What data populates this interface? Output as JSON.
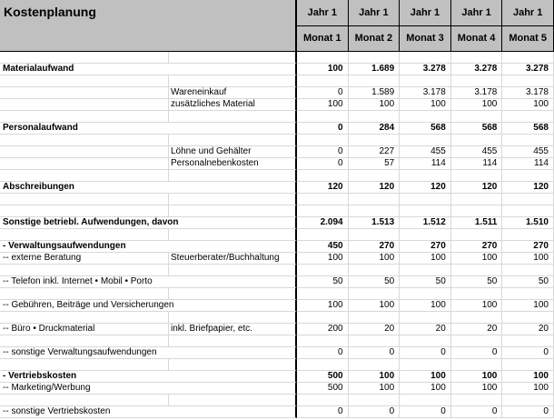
{
  "title": "Kostenplanung",
  "colors": {
    "header_bg": "#c0c0c0",
    "grid_line": "#d8d8d8",
    "strong_line": "#000000",
    "text": "#000000",
    "body_bg": "#ffffff"
  },
  "header": {
    "years": [
      "Jahr 1",
      "Jahr 1",
      "Jahr 1",
      "Jahr 1",
      "Jahr 1"
    ],
    "months": [
      "Monat 1",
      "Monat 2",
      "Monat 3",
      "Monat 4",
      "Monat 5"
    ]
  },
  "rows": [
    {
      "type": "empty"
    },
    {
      "type": "section",
      "label": "Materialaufwand",
      "note": "",
      "values": [
        "100",
        "1.689",
        "3.278",
        "3.278",
        "3.278"
      ]
    },
    {
      "type": "empty"
    },
    {
      "type": "detail",
      "label": "",
      "note": "Wareneinkauf",
      "values": [
        "0",
        "1.589",
        "3.178",
        "3.178",
        "3.178"
      ]
    },
    {
      "type": "detail",
      "label": "",
      "note": "zusätzliches Material",
      "values": [
        "100",
        "100",
        "100",
        "100",
        "100"
      ]
    },
    {
      "type": "empty"
    },
    {
      "type": "section",
      "label": "Personalaufwand",
      "note": "",
      "values": [
        "0",
        "284",
        "568",
        "568",
        "568"
      ]
    },
    {
      "type": "empty"
    },
    {
      "type": "detail",
      "label": "",
      "note": "Löhne und Gehälter",
      "values": [
        "0",
        "227",
        "455",
        "455",
        "455"
      ]
    },
    {
      "type": "detail",
      "label": "",
      "note": "Personalnebenkosten",
      "values": [
        "0",
        "57",
        "114",
        "114",
        "114"
      ]
    },
    {
      "type": "empty"
    },
    {
      "type": "section",
      "label": "Abschreibungen",
      "note": "",
      "values": [
        "120",
        "120",
        "120",
        "120",
        "120"
      ]
    },
    {
      "type": "empty"
    },
    {
      "type": "empty"
    },
    {
      "type": "section",
      "label": "Sonstige betriebl. Aufwendungen, davon",
      "note": "",
      "values": [
        "2.094",
        "1.513",
        "1.512",
        "1.511",
        "1.510"
      ]
    },
    {
      "type": "empty"
    },
    {
      "type": "section",
      "label": "- Verwaltungsaufwendungen",
      "note": "",
      "values": [
        "450",
        "270",
        "270",
        "270",
        "270"
      ]
    },
    {
      "type": "detail",
      "label": "-- externe Beratung",
      "note": "Steuerberater/Buchhaltung",
      "values": [
        "100",
        "100",
        "100",
        "100",
        "100"
      ]
    },
    {
      "type": "empty"
    },
    {
      "type": "detail",
      "label": "-- Telefon inkl. Internet • Mobil • Porto",
      "note": "",
      "values": [
        "50",
        "50",
        "50",
        "50",
        "50"
      ]
    },
    {
      "type": "empty"
    },
    {
      "type": "detail",
      "label": "-- Gebühren, Beiträge und Versicherungen",
      "note": "",
      "values": [
        "100",
        "100",
        "100",
        "100",
        "100"
      ]
    },
    {
      "type": "empty"
    },
    {
      "type": "detail",
      "label": "-- Büro • Druckmaterial",
      "note": "inkl. Briefpapier, etc.",
      "values": [
        "200",
        "20",
        "20",
        "20",
        "20"
      ]
    },
    {
      "type": "empty"
    },
    {
      "type": "detail",
      "label": "-- sonstige Verwaltungsaufwendungen",
      "note": "",
      "values": [
        "0",
        "0",
        "0",
        "0",
        "0"
      ]
    },
    {
      "type": "empty"
    },
    {
      "type": "section",
      "label": "- Vertriebskosten",
      "note": "",
      "values": [
        "500",
        "100",
        "100",
        "100",
        "100"
      ]
    },
    {
      "type": "detail",
      "label": "-- Marketing/Werbung",
      "note": "",
      "values": [
        "500",
        "100",
        "100",
        "100",
        "100"
      ]
    },
    {
      "type": "empty"
    },
    {
      "type": "detail",
      "label": "-- sonstige Vertriebskosten",
      "note": "",
      "values": [
        "0",
        "0",
        "0",
        "0",
        "0"
      ]
    }
  ]
}
